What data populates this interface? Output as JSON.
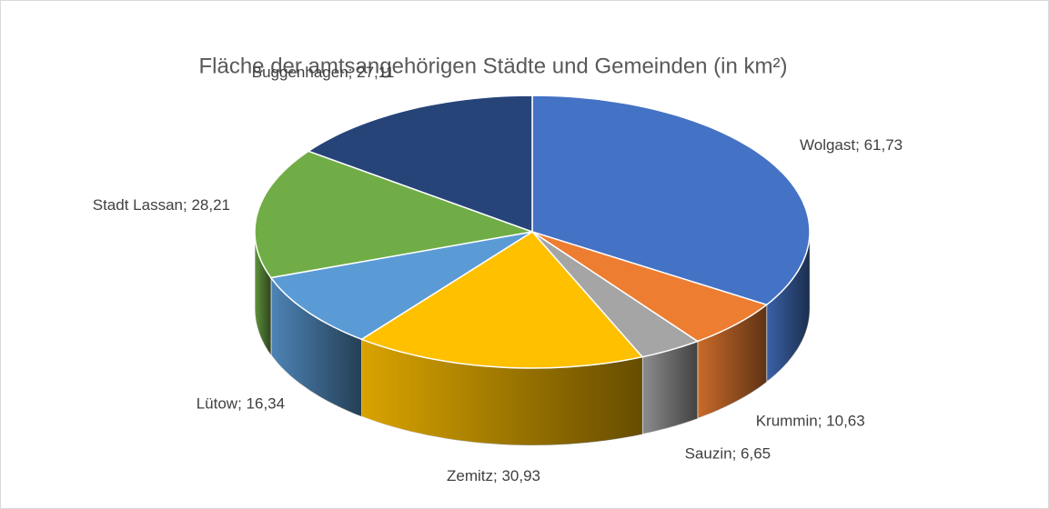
{
  "chart_data": {
    "type": "pie3d",
    "title": "Fläche der amtsangehörigen Städte und Gemeinden (in km²)",
    "categories": [
      "Wolgast",
      "Krummin",
      "Sauzin",
      "Zemitz",
      "Lütow",
      "Stadt Lassan",
      "Buggenhagen"
    ],
    "values": [
      61.73,
      10.63,
      6.65,
      30.93,
      16.34,
      28.21,
      27.11
    ],
    "value_labels": [
      "61,73",
      "10,63",
      "6,65",
      "30,93",
      "16,34",
      "28,21",
      "27,11"
    ],
    "label_separator": "; ",
    "colors": [
      "#4472c4",
      "#ed7d31",
      "#a5a5a5",
      "#ffc000",
      "#5b9bd5",
      "#70ad47",
      "#264478"
    ]
  }
}
